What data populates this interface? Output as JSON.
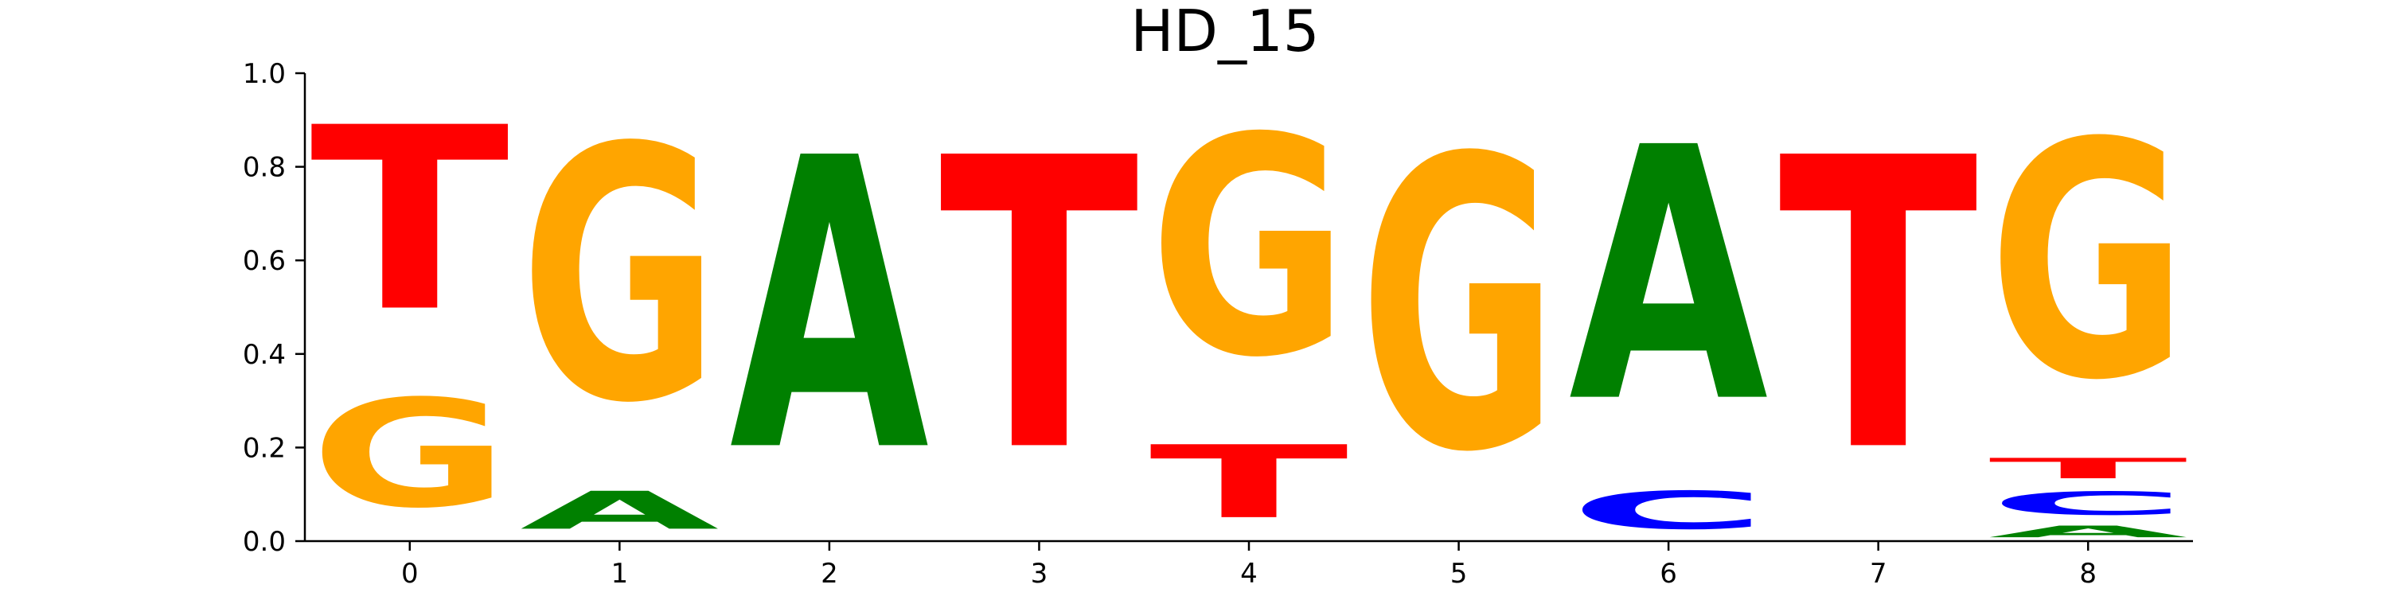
{
  "chart_data": {
    "type": "sequence-logo",
    "title": "HD_15",
    "xlabel": "",
    "ylabel": "",
    "xlim": [
      -0.5,
      8.5
    ],
    "ylim": [
      0,
      1.0
    ],
    "x_ticks": [
      "0",
      "1",
      "2",
      "3",
      "4",
      "5",
      "6",
      "7",
      "8"
    ],
    "y_ticks": [
      "0.0",
      "0.2",
      "0.4",
      "0.6",
      "0.8",
      "1.0"
    ],
    "grid": false,
    "colors": {
      "A": "#008000",
      "C": "#0000ff",
      "G": "#ffa500",
      "T": "#ff0000"
    },
    "positions": [
      {
        "position": 0,
        "stack": [
          {
            "letter": "G",
            "value": 0.37
          },
          {
            "letter": "T",
            "value": 0.63
          }
        ]
      },
      {
        "position": 1,
        "stack": [
          {
            "letter": "A",
            "value": 0.13
          },
          {
            "letter": "G",
            "value": 0.87
          }
        ]
      },
      {
        "position": 2,
        "stack": [
          {
            "letter": "A",
            "value": 1.0
          }
        ]
      },
      {
        "position": 3,
        "stack": [
          {
            "letter": "T",
            "value": 1.0
          }
        ]
      },
      {
        "position": 4,
        "stack": [
          {
            "letter": "T",
            "value": 0.25
          },
          {
            "letter": "G",
            "value": 0.75
          }
        ]
      },
      {
        "position": 5,
        "stack": [
          {
            "letter": "G",
            "value": 1.0
          }
        ]
      },
      {
        "position": 6,
        "stack": [
          {
            "letter": "C",
            "value": 0.13
          },
          {
            "letter": "A",
            "value": 0.87
          }
        ]
      },
      {
        "position": 7,
        "stack": [
          {
            "letter": "T",
            "value": 1.0
          }
        ]
      },
      {
        "position": 8,
        "stack": [
          {
            "letter": "A",
            "value": 0.04
          },
          {
            "letter": "C",
            "value": 0.08
          },
          {
            "letter": "T",
            "value": 0.07
          },
          {
            "letter": "G",
            "value": 0.81
          }
        ]
      }
    ]
  }
}
